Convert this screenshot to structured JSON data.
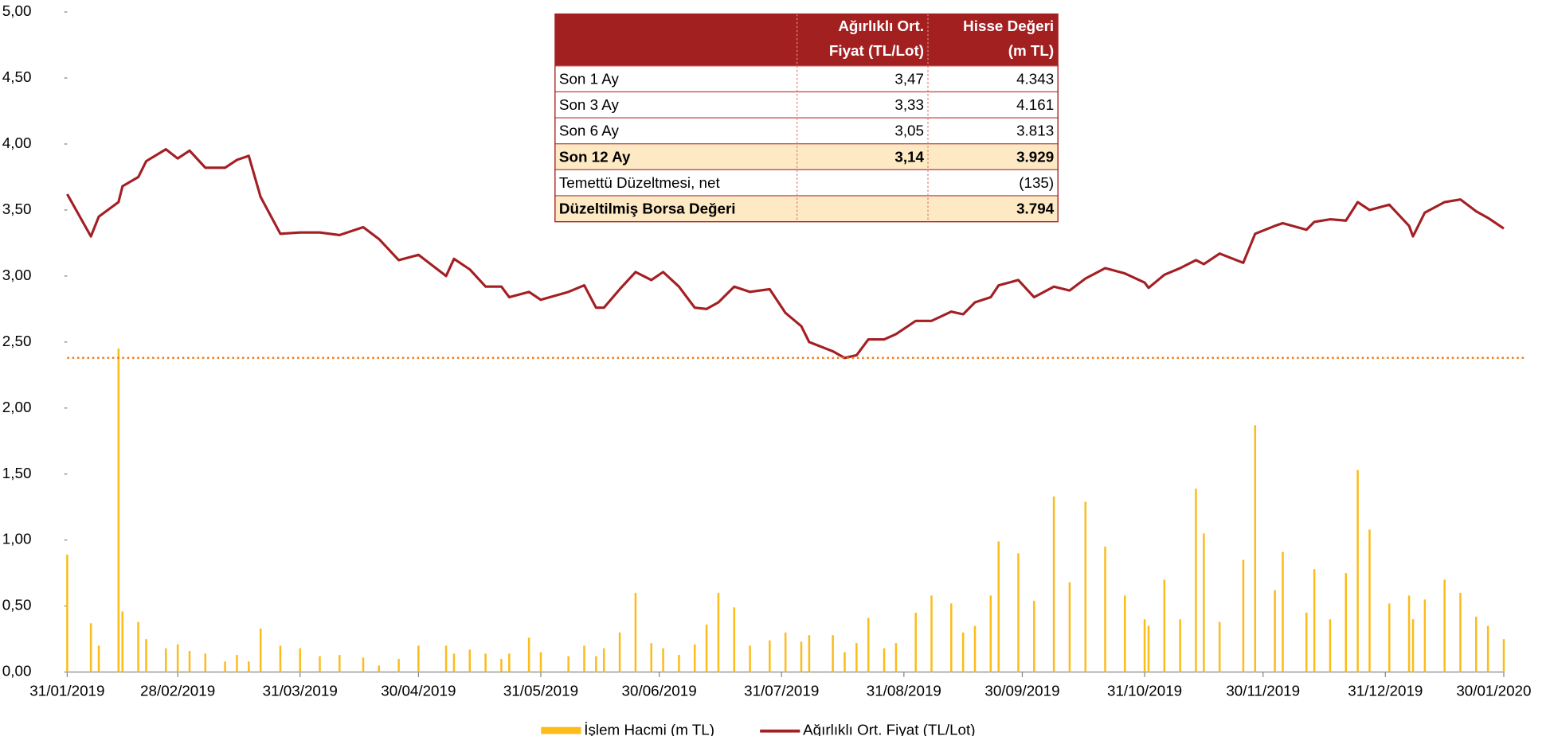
{
  "chart_data": {
    "type": "bar_line",
    "xlim": [
      "31/01/2019",
      "30/01/2020"
    ],
    "xticks": [
      "31/01/2019",
      "28/02/2019",
      "31/03/2019",
      "30/04/2019",
      "31/05/2019",
      "30/06/2019",
      "31/07/2019",
      "31/08/2019",
      "30/09/2019",
      "31/10/2019",
      "30/11/2019",
      "31/12/2019",
      "30/01/2020"
    ],
    "ylim": [
      0,
      5
    ],
    "yticks": [
      {
        "value": 0,
        "label": "0,00"
      },
      {
        "value": 0.5,
        "label": "0,50"
      },
      {
        "value": 1,
        "label": "1,00"
      },
      {
        "value": 1.5,
        "label": "1,50"
      },
      {
        "value": 2,
        "label": "2,00"
      },
      {
        "value": 2.5,
        "label": "2,50"
      },
      {
        "value": 3,
        "label": "3,00"
      },
      {
        "value": 3.5,
        "label": "3,50"
      },
      {
        "value": 4,
        "label": "4,00"
      },
      {
        "value": 4.5,
        "label": "4,50"
      },
      {
        "value": 5,
        "label": "5,00"
      }
    ],
    "x": [
      "31/01/2019",
      "06/02/2019",
      "08/02/2019",
      "13/02/2019",
      "14/02/2019",
      "18/02/2019",
      "20/02/2019",
      "25/02/2019",
      "28/02/2019",
      "03/03/2019",
      "07/03/2019",
      "12/03/2019",
      "15/03/2019",
      "18/03/2019",
      "21/03/2019",
      "26/03/2019",
      "31/03/2019",
      "05/04/2019",
      "10/04/2019",
      "16/04/2019",
      "20/04/2019",
      "25/04/2019",
      "30/04/2019",
      "07/05/2019",
      "09/05/2019",
      "13/05/2019",
      "17/05/2019",
      "21/05/2019",
      "23/05/2019",
      "28/05/2019",
      "31/05/2019",
      "07/06/2019",
      "11/06/2019",
      "14/06/2019",
      "16/06/2019",
      "20/06/2019",
      "24/06/2019",
      "28/06/2019",
      "01/07/2019",
      "05/07/2019",
      "09/07/2019",
      "12/07/2019",
      "15/07/2019",
      "19/07/2019",
      "23/07/2019",
      "28/07/2019",
      "01/08/2019",
      "05/08/2019",
      "07/08/2019",
      "13/08/2019",
      "16/08/2019",
      "19/08/2019",
      "22/08/2019",
      "26/08/2019",
      "29/08/2019",
      "03/09/2019",
      "07/09/2019",
      "12/09/2019",
      "15/09/2019",
      "18/09/2019",
      "22/09/2019",
      "24/09/2019",
      "29/09/2019",
      "03/10/2019",
      "08/10/2019",
      "12/10/2019",
      "16/10/2019",
      "21/10/2019",
      "26/10/2019",
      "31/10/2019",
      "01/11/2019",
      "05/11/2019",
      "09/11/2019",
      "13/11/2019",
      "15/11/2019",
      "19/11/2019",
      "25/11/2019",
      "28/11/2019",
      "03/12/2019",
      "05/12/2019",
      "11/12/2019",
      "13/12/2019",
      "17/12/2019",
      "21/12/2019",
      "24/12/2019",
      "27/12/2019",
      "01/01/2020",
      "06/01/2020",
      "07/01/2020",
      "10/01/2020",
      "15/01/2020",
      "19/01/2020",
      "23/01/2020",
      "26/01/2020",
      "30/01/2020"
    ],
    "series": [
      {
        "name": "İşlem Hacmi (m TL)",
        "type": "bar",
        "color": "#fbbc1c",
        "values": [
          0.89,
          0.37,
          0.2,
          2.45,
          0.46,
          0.38,
          0.25,
          0.18,
          0.21,
          0.16,
          0.14,
          0.08,
          0.13,
          0.08,
          0.33,
          0.2,
          0.18,
          0.12,
          0.13,
          0.11,
          0.05,
          0.1,
          0.2,
          0.2,
          0.14,
          0.17,
          0.14,
          0.1,
          0.14,
          0.26,
          0.15,
          0.12,
          0.2,
          0.12,
          0.18,
          0.3,
          0.6,
          0.22,
          0.18,
          0.13,
          0.21,
          0.36,
          0.6,
          0.49,
          0.2,
          0.24,
          0.3,
          0.23,
          0.28,
          0.28,
          0.15,
          0.22,
          0.41,
          0.18,
          0.22,
          0.45,
          0.58,
          0.52,
          0.3,
          0.35,
          0.58,
          0.99,
          0.9,
          0.54,
          1.33,
          0.68,
          1.29,
          0.95,
          0.58,
          0.4,
          0.35,
          0.7,
          0.4,
          1.39,
          1.05,
          0.38,
          0.85,
          1.87,
          0.62,
          0.91,
          0.45,
          0.78,
          0.4,
          0.75,
          1.53,
          1.08,
          0.52,
          0.58,
          0.4,
          0.55,
          0.7,
          0.6,
          0.42,
          0.35,
          0.25
        ]
      },
      {
        "name": "Ağırlıklı Ort. Fiyat (TL/Lot)",
        "type": "line",
        "color": "#a31f24",
        "values": [
          3.62,
          3.3,
          3.45,
          3.56,
          3.68,
          3.75,
          3.87,
          3.96,
          3.89,
          3.95,
          3.82,
          3.82,
          3.88,
          3.91,
          3.6,
          3.32,
          3.33,
          3.33,
          3.31,
          3.37,
          3.28,
          3.12,
          3.16,
          3.0,
          3.13,
          3.05,
          2.92,
          2.92,
          2.84,
          2.88,
          2.82,
          2.88,
          2.93,
          2.76,
          2.76,
          2.9,
          3.03,
          2.97,
          3.03,
          2.92,
          2.76,
          2.75,
          2.8,
          2.92,
          2.88,
          2.9,
          2.72,
          2.62,
          2.5,
          2.43,
          2.38,
          2.4,
          2.52,
          2.52,
          2.56,
          2.66,
          2.66,
          2.73,
          2.71,
          2.8,
          2.84,
          2.93,
          2.97,
          2.84,
          2.92,
          2.89,
          2.98,
          3.06,
          3.02,
          2.95,
          2.91,
          3.01,
          3.06,
          3.12,
          3.09,
          3.17,
          3.1,
          3.32,
          3.38,
          3.4,
          3.35,
          3.41,
          3.43,
          3.42,
          3.56,
          3.5,
          3.54,
          3.38,
          3.3,
          3.48,
          3.56,
          3.58,
          3.49,
          3.44,
          3.36
        ]
      }
    ],
    "reference_line": {
      "value": 2.38,
      "color": "#f07c1e"
    },
    "legend": "bottom"
  },
  "table": {
    "header": [
      [
        "Ağırlıklı Ort.",
        "Fiyat (TL/Lot)"
      ],
      [
        "Hisse Değeri",
        "(m TL)"
      ]
    ],
    "rows": [
      {
        "label": "Son 1 Ay",
        "price": "3,47",
        "value": "4.343",
        "bold": false
      },
      {
        "label": "Son 3 Ay",
        "price": "3,33",
        "value": "4.161",
        "bold": false
      },
      {
        "label": "Son 6 Ay",
        "price": "3,05",
        "value": "3.813",
        "bold": false
      },
      {
        "label": "Son 12 Ay",
        "price": "3,14",
        "value": "3.929",
        "bold": true
      },
      {
        "label": "Temettü Düzeltmesi, net",
        "value": "(135)",
        "bold": false
      },
      {
        "label": "Düzeltilmiş Borsa Değeri",
        "value": "3.794",
        "bold": true
      }
    ]
  }
}
